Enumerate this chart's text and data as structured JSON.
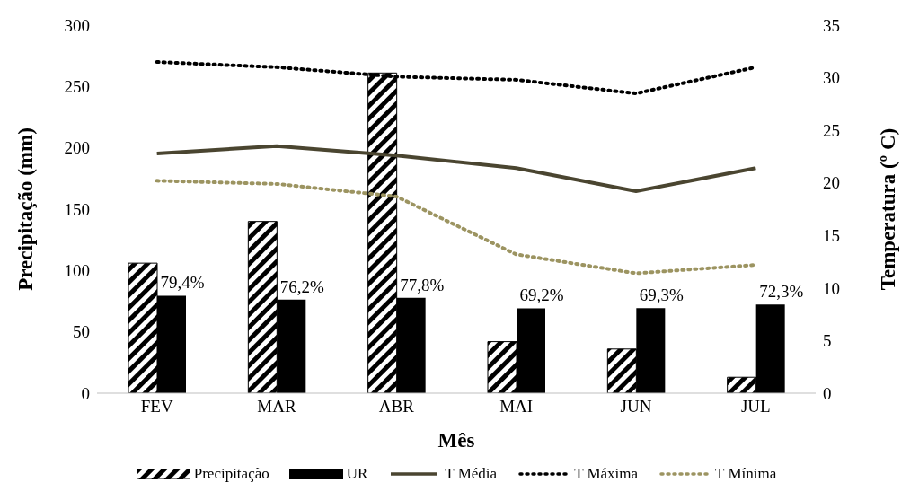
{
  "chart_data": {
    "type": "bar",
    "xlabel": "Mês",
    "ylabel": "Precipitação (mm)",
    "y2label": "Temperatura (º C)",
    "categories": [
      "FEV",
      "MAR",
      "ABR",
      "MAI",
      "JUN",
      "JUL"
    ],
    "series": [
      {
        "name": "Precipitação",
        "color": "#000000",
        "values": [
          106,
          140,
          261,
          42,
          36,
          13
        ]
      },
      {
        "name": "UR",
        "color": "#000000",
        "values": [
          79.4,
          76.2,
          77.8,
          69.2,
          69.3,
          72.3
        ],
        "value_labels": [
          "79,4%",
          "76,2%",
          "77,8%",
          "69,2%",
          "69,3%",
          "72,3%"
        ]
      },
      {
        "name": "T Média",
        "type": "line",
        "axis": "y2",
        "color": "#4a4530",
        "line_style": "solid",
        "values": [
          22.8,
          23.5,
          22.6,
          21.4,
          19.2,
          21.4
        ]
      },
      {
        "name": "T Máxima",
        "type": "line",
        "axis": "y2",
        "color": "#000000",
        "line_style": "dotted",
        "values": [
          31.5,
          31.0,
          30.1,
          29.8,
          28.5,
          31.0
        ]
      },
      {
        "name": "T Mínima",
        "type": "line",
        "axis": "y2",
        "color": "#9c9461",
        "line_style": "dotted",
        "values": [
          20.2,
          19.9,
          18.7,
          13.2,
          11.4,
          12.2
        ]
      }
    ],
    "ylim": [
      0,
      300
    ],
    "yticks": [
      0,
      50,
      100,
      150,
      200,
      250,
      300
    ],
    "y2lim": [
      0,
      35
    ],
    "y2ticks": [
      0,
      5,
      10,
      15,
      20,
      25,
      30,
      35
    ],
    "grid": false,
    "legend": "bottom",
    "marker": "none"
  }
}
